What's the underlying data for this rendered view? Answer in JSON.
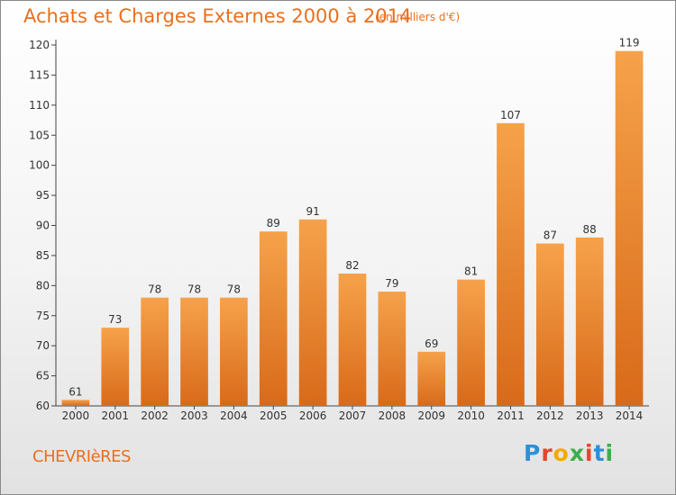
{
  "header": {
    "title": "Achats et Charges Externes 2000 à 2014",
    "subtitle": "(en milliers d'€)"
  },
  "footer": {
    "commune": "CHEVRIèRES",
    "brand": "Proxiti",
    "brand_colors": [
      "#2e8fd6",
      "#e8452c",
      "#f2a900",
      "#3cae48",
      "#e8452c",
      "#2e8fd6",
      "#3cae48"
    ]
  },
  "chart_data": {
    "type": "bar",
    "categories": [
      "2000",
      "2001",
      "2002",
      "2003",
      "2004",
      "2005",
      "2006",
      "2007",
      "2008",
      "2009",
      "2010",
      "2011",
      "2012",
      "2013",
      "2014"
    ],
    "values": [
      61,
      73,
      78,
      78,
      78,
      89,
      91,
      82,
      79,
      69,
      81,
      107,
      87,
      88,
      119
    ],
    "ylim": [
      60,
      120
    ],
    "yticks": [
      60,
      65,
      70,
      75,
      80,
      85,
      90,
      95,
      100,
      105,
      110,
      115,
      120
    ],
    "grid": false,
    "bar_color": "#ef8a2e",
    "title": "Achats et Charges Externes 2000 à 2014",
    "subtitle": "(en milliers d'€)"
  }
}
